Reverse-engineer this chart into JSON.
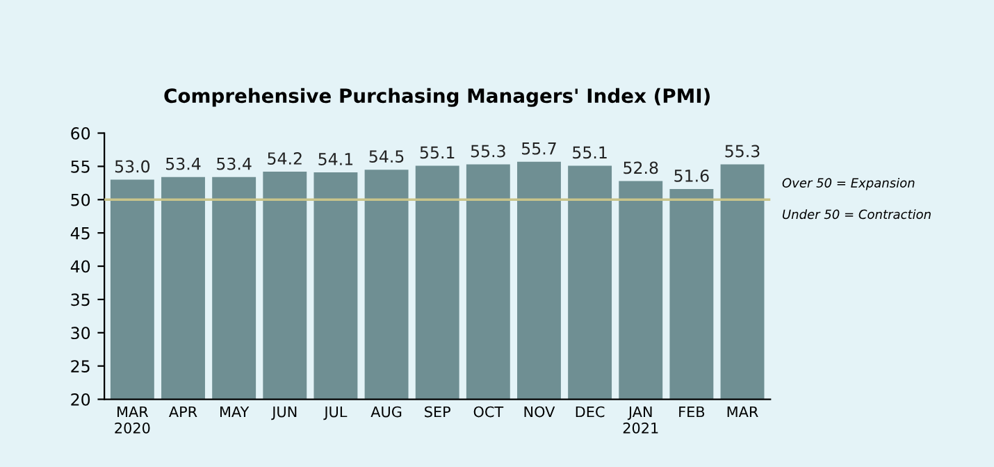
{
  "chart_data": {
    "type": "bar",
    "title": "Comprehensive Purchasing Managers' Index (PMI)",
    "categories": [
      "MAR\n2020",
      "APR",
      "MAY",
      "JUN",
      "JUL",
      "AUG",
      "SEP",
      "OCT",
      "NOV",
      "DEC",
      "JAN\n2021",
      "FEB",
      "MAR"
    ],
    "values": [
      53.0,
      53.4,
      53.4,
      54.2,
      54.1,
      54.5,
      55.1,
      55.3,
      55.7,
      55.1,
      52.8,
      51.6,
      55.3
    ],
    "value_labels": [
      "53.0",
      "53.4",
      "53.4",
      "54.2",
      "54.1",
      "54.5",
      "55.1",
      "55.3",
      "55.7",
      "55.1",
      "52.8",
      "51.6",
      "55.3"
    ],
    "color": "#6f8f93",
    "ylim": [
      20,
      60
    ],
    "yticks": [
      20,
      25,
      30,
      35,
      40,
      45,
      50,
      55,
      60
    ],
    "ref_lines": [
      {
        "axis": "y",
        "value": 50,
        "label": null,
        "color": "#c9c48a"
      }
    ],
    "annotations": [
      "Over 50 = Expansion",
      "Under 50 = Contraction"
    ],
    "grid": false,
    "legend": false
  }
}
